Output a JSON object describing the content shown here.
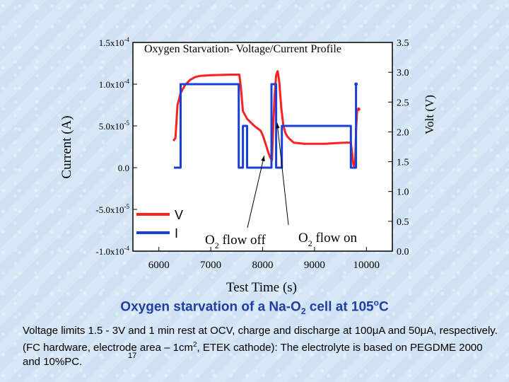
{
  "chart_data": {
    "type": "line",
    "title": "Oxygen Starvation- Voltage/Current Profile",
    "xlabel": "Test Time (s)",
    "ylabel_left": "Current (A)",
    "ylabel_right": "Volt (V)",
    "xlim": [
      5500,
      10500
    ],
    "ylim_left": [
      -0.0001,
      0.00015
    ],
    "ylim_right": [
      0.0,
      3.5
    ],
    "x_ticks": [
      6000,
      7000,
      8000,
      9000,
      10000
    ],
    "y_left_ticks": [
      -0.0001,
      -5e-05,
      0.0,
      5e-05,
      0.0001,
      0.00015
    ],
    "y_left_tick_labels": [
      "-1.0x10-4",
      "-5.0x10-5",
      "0.0",
      "5.0x10-5",
      "1.0x10-4",
      "1.5x10-4"
    ],
    "y_right_ticks": [
      0.0,
      0.5,
      1.0,
      1.5,
      2.0,
      2.5,
      3.0,
      3.5
    ],
    "y_right_tick_labels": [
      "0.0",
      "0.5",
      "1.0",
      "1.5",
      "2.0",
      "2.5",
      "3.0",
      "3.5"
    ],
    "series": [
      {
        "name": "V",
        "color": "#ff2020",
        "axis": "right",
        "x": [
          6280,
          6320,
          6360,
          6420,
          6500,
          6600,
          6700,
          6800,
          7000,
          7200,
          7400,
          7550,
          7580,
          7620,
          7700,
          7780,
          7840,
          7900,
          7960,
          8000,
          8050,
          8100,
          8140,
          8180,
          8200,
          8230,
          8260,
          8290,
          8320,
          8360,
          8400,
          8440,
          8480,
          8520,
          8600,
          8800,
          9000,
          9200,
          9400,
          9600,
          9700,
          9750,
          9780,
          9800,
          9820,
          9850
        ],
        "y": [
          1.85,
          1.9,
          2.45,
          2.65,
          2.78,
          2.87,
          2.92,
          2.94,
          2.95,
          2.955,
          2.96,
          2.96,
          2.75,
          2.35,
          2.22,
          2.15,
          2.1,
          2.06,
          2.02,
          1.95,
          1.82,
          1.68,
          1.58,
          1.52,
          2.0,
          2.6,
          2.95,
          3.02,
          2.85,
          2.4,
          2.1,
          1.98,
          1.92,
          1.88,
          1.82,
          1.8,
          1.8,
          1.8,
          1.81,
          1.82,
          1.82,
          1.45,
          1.4,
          2.0,
          2.35,
          2.38
        ]
      },
      {
        "name": "I",
        "color": "#1a3fd6",
        "axis": "left",
        "x": [
          6290,
          6290,
          6420,
          6420,
          7540,
          7540,
          7620,
          7620,
          7700,
          7700,
          8170,
          8170,
          8260,
          8260,
          8370,
          8370,
          9700,
          9700,
          9800,
          9800
        ],
        "y": [
          0.0,
          0.0,
          0.0,
          0.0001,
          0.0001,
          0.0,
          0.0,
          5e-05,
          5e-05,
          0.0,
          0.0,
          0.0001,
          0.0001,
          0.0,
          0.0,
          5e-05,
          5e-05,
          0.0,
          0.0,
          0.0001
        ]
      }
    ],
    "legend_position": "bottom-left",
    "annotations": [
      {
        "text_main": "O",
        "text_sub": "2",
        "text_tail": " flow off",
        "arrow_target_x": 8030,
        "arrow_target_y_right": 1.6
      },
      {
        "text_main": "O",
        "text_sub": "2",
        "text_tail": " flow on",
        "arrow_target_x": 8280,
        "arrow_target_y_right": 2.15
      }
    ]
  },
  "slide": {
    "caption_part1": "Oxygen starvation of a Na-O",
    "caption_sub": "2",
    "caption_part2": " cell at 105",
    "caption_degree": "o",
    "caption_part3": "C",
    "body_part1": "Voltage limits  1.5 - 3V and 1 min rest at OCV, charge and discharge at 100μA and 50μA, respectively. (FC hardware, electrode area – 1cm",
    "body_sup": "2",
    "body_part2": ", ETEK cathode): The electrolyte is based on PEGDME 2000 and 10%PC.",
    "footnote_marker": "17"
  }
}
